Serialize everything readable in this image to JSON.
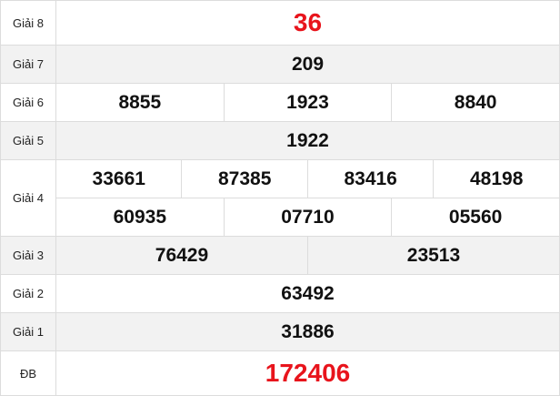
{
  "prizes": [
    {
      "label": "Giải 8",
      "numbers": [
        "36"
      ]
    },
    {
      "label": "Giải 7",
      "numbers": [
        "209"
      ]
    },
    {
      "label": "Giải 6",
      "numbers": [
        "8855",
        "1923",
        "8840"
      ]
    },
    {
      "label": "Giải 5",
      "numbers": [
        "1922"
      ]
    },
    {
      "label": "Giải 4",
      "numbers": [
        "33661",
        "87385",
        "83416",
        "48198",
        "60935",
        "07710",
        "05560"
      ]
    },
    {
      "label": "Giải 3",
      "numbers": [
        "76429",
        "23513"
      ]
    },
    {
      "label": "Giải 2",
      "numbers": [
        "63492"
      ]
    },
    {
      "label": "Giải 1",
      "numbers": [
        "31886"
      ]
    },
    {
      "label": "ĐB",
      "numbers": [
        "172406"
      ]
    }
  ],
  "colors": {
    "highlight": "#e8141c",
    "row_alt": "#f2f2f2",
    "border": "#dcdcdc"
  }
}
